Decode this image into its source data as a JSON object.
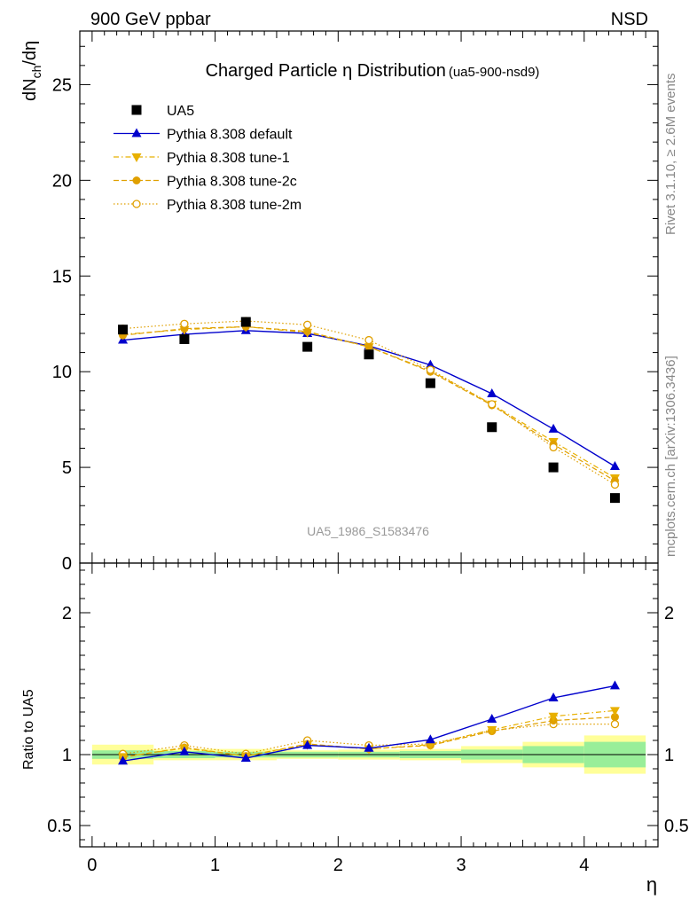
{
  "header": {
    "left": "900 GeV ppbar",
    "right": "NSD"
  },
  "side_labels": {
    "rivet": "Rivet 3.1.10, ≥ 2.6M events",
    "mcplots": "mcplots.cern.ch [arXiv:1306.3436]"
  },
  "chart_data": [
    {
      "type": "scatter",
      "title": "Charged Particle η Distribution",
      "subtitle": "(ua5-900-nsd9)",
      "xlabel": "η",
      "ylabel_main": "dN",
      "ylabel_sub": "ch",
      "ylabel_tail": "/dη",
      "watermark": "UA5_1986_S1583476",
      "xlim": [
        -0.1,
        4.6
      ],
      "ylim": [
        0,
        27.8
      ],
      "yticks": [
        0,
        5,
        10,
        15,
        20,
        25
      ],
      "ytick_labels": [
        "0",
        "5",
        "10",
        "15",
        "20",
        "25"
      ],
      "legend_position": "top-left",
      "x": [
        0.25,
        0.75,
        1.25,
        1.75,
        2.25,
        2.75,
        3.25,
        3.75,
        4.25
      ],
      "series": [
        {
          "name": "UA5",
          "color": "#000000",
          "marker": "square",
          "line": "none",
          "values": [
            12.2,
            11.7,
            12.6,
            11.3,
            10.9,
            9.4,
            7.1,
            5.0,
            3.4
          ]
        },
        {
          "name": "Pythia 8.308 default",
          "color": "#0000cc",
          "marker": "triangle-up",
          "line": "solid",
          "values": [
            11.65,
            11.95,
            12.15,
            12.0,
            11.35,
            10.35,
            8.85,
            7.0,
            5.05
          ]
        },
        {
          "name": "Pythia 8.308 tune-1",
          "color": "#e8b000",
          "marker": "triangle-down",
          "line": "dashdot",
          "values": [
            11.95,
            12.2,
            12.35,
            12.05,
            11.3,
            10.05,
            8.3,
            6.35,
            4.45
          ]
        },
        {
          "name": "Pythia 8.308 tune-2c",
          "color": "#e0a000",
          "marker": "circle",
          "line": "dashed",
          "values": [
            11.9,
            12.25,
            12.35,
            12.1,
            11.3,
            10.0,
            8.25,
            6.2,
            4.3
          ]
        },
        {
          "name": "Pythia 8.308 tune-2m",
          "color": "#e0a000",
          "marker": "circle-open",
          "line": "dotted",
          "values": [
            12.25,
            12.5,
            12.65,
            12.45,
            11.65,
            10.1,
            8.3,
            6.05,
            4.1
          ]
        }
      ]
    },
    {
      "type": "scatter",
      "xlabel": "η",
      "ylabel": "Ratio to UA5",
      "xlim": [
        -0.1,
        4.6
      ],
      "ylim": [
        0.35,
        2.35
      ],
      "xticks": [
        0,
        1,
        2,
        3,
        4
      ],
      "xtick_labels": [
        "0",
        "1",
        "2",
        "3",
        "4"
      ],
      "yticks": [
        0.5,
        1,
        2
      ],
      "ytick_labels": [
        "0.5",
        "1",
        "2"
      ],
      "x": [
        0.25,
        0.75,
        1.25,
        1.75,
        2.25,
        2.75,
        3.25,
        3.75,
        4.25
      ],
      "uncertainty_bands": {
        "edges": [
          0,
          0.5,
          1.0,
          1.5,
          2.0,
          2.5,
          3.0,
          3.5,
          4.0,
          4.5
        ],
        "inner": [
          0.03,
          0.025,
          0.02,
          0.02,
          0.02,
          0.025,
          0.035,
          0.06,
          0.09
        ],
        "outer": [
          0.07,
          0.04,
          0.04,
          0.03,
          0.035,
          0.04,
          0.06,
          0.09,
          0.135
        ],
        "inner_color": "#99ee99",
        "outer_color": "#ffff99"
      },
      "series": [
        {
          "name": "Pythia 8.308 default",
          "color": "#0000cc",
          "marker": "triangle-up",
          "line": "solid",
          "values": [
            0.955,
            1.02,
            0.975,
            1.065,
            1.045,
            1.105,
            1.25,
            1.4,
            1.485
          ]
        },
        {
          "name": "Pythia 8.308 tune-1",
          "color": "#e8b000",
          "marker": "triangle-down",
          "line": "dashdot",
          "values": [
            0.985,
            1.045,
            0.99,
            1.07,
            1.04,
            1.07,
            1.175,
            1.27,
            1.31
          ]
        },
        {
          "name": "Pythia 8.308 tune-2c",
          "color": "#e0a000",
          "marker": "circle",
          "line": "dashed",
          "values": [
            0.98,
            1.05,
            0.99,
            1.075,
            1.04,
            1.065,
            1.165,
            1.24,
            1.265
          ]
        },
        {
          "name": "Pythia 8.308 tune-2m",
          "color": "#e0a000",
          "marker": "circle-open",
          "line": "dotted",
          "values": [
            1.005,
            1.065,
            1.005,
            1.1,
            1.065,
            1.075,
            1.17,
            1.215,
            1.215
          ]
        }
      ]
    }
  ]
}
